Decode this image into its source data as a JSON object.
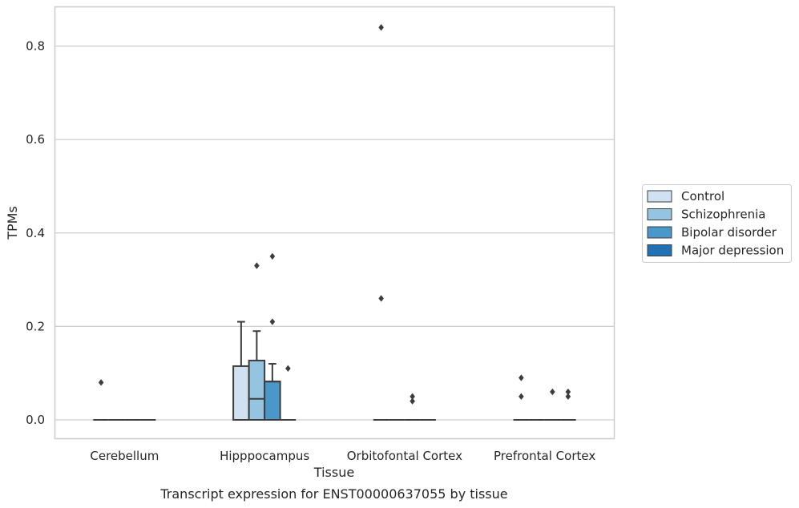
{
  "chart_data": {
    "type": "boxplot",
    "title": "Transcript expression for ENST00000637055 by tissue",
    "xlabel": "Tissue",
    "ylabel": "TPMs",
    "ylim": [
      -0.04,
      0.885
    ],
    "yticks": [
      0.0,
      0.2,
      0.4,
      0.6,
      0.8
    ],
    "ytick_labels": [
      "0.0",
      "0.2",
      "0.4",
      "0.6",
      "0.8"
    ],
    "grid": "horizontal",
    "legend_position": "right",
    "categories": [
      "Cerebellum",
      "Hipppocampus",
      "Orbitofontal Cortex",
      "Prefrontal Cortex"
    ],
    "series": [
      {
        "name": "Control",
        "color": "#d0e1f2",
        "boxes": [
          {
            "q1": 0,
            "median": 0,
            "q3": 0,
            "whislo": 0,
            "whishi": 0,
            "fliers": [
              0.08
            ]
          },
          {
            "q1": 0,
            "median": 0,
            "q3": 0.115,
            "whislo": 0,
            "whishi": 0.21,
            "fliers": []
          },
          {
            "q1": 0,
            "median": 0,
            "q3": 0,
            "whislo": 0,
            "whishi": 0,
            "fliers": [
              0.84,
              0.26
            ]
          },
          {
            "q1": 0,
            "median": 0,
            "q3": 0,
            "whislo": 0,
            "whishi": 0,
            "fliers": [
              0.09,
              0.05
            ]
          }
        ]
      },
      {
        "name": "Schizophrenia",
        "color": "#94c4df",
        "boxes": [
          {
            "q1": 0,
            "median": 0,
            "q3": 0,
            "whislo": 0,
            "whishi": 0,
            "fliers": []
          },
          {
            "q1": 0,
            "median": 0.045,
            "q3": 0.127,
            "whislo": 0,
            "whishi": 0.19,
            "fliers": [
              0.33
            ]
          },
          {
            "q1": 0,
            "median": 0,
            "q3": 0,
            "whislo": 0,
            "whishi": 0,
            "fliers": []
          },
          {
            "q1": 0,
            "median": 0,
            "q3": 0,
            "whislo": 0,
            "whishi": 0,
            "fliers": []
          }
        ]
      },
      {
        "name": "Bipolar disorder",
        "color": "#4a98c9",
        "boxes": [
          {
            "q1": 0,
            "median": 0,
            "q3": 0,
            "whislo": 0,
            "whishi": 0,
            "fliers": []
          },
          {
            "q1": 0,
            "median": 0.082,
            "q3": 0.082,
            "whislo": 0,
            "whishi": 0.12,
            "fliers": [
              0.35,
              0.21
            ]
          },
          {
            "q1": 0,
            "median": 0,
            "q3": 0,
            "whislo": 0,
            "whishi": 0,
            "fliers": [
              0.05,
              0.04
            ]
          },
          {
            "q1": 0,
            "median": 0,
            "q3": 0,
            "whislo": 0,
            "whishi": 0,
            "fliers": [
              0.06
            ]
          }
        ]
      },
      {
        "name": "Major depression",
        "color": "#2171b5",
        "boxes": [
          {
            "q1": 0,
            "median": 0,
            "q3": 0,
            "whislo": 0,
            "whishi": 0,
            "fliers": []
          },
          {
            "q1": 0,
            "median": 0,
            "q3": 0,
            "whislo": 0,
            "whishi": 0,
            "fliers": [
              0.11
            ]
          },
          {
            "q1": 0,
            "median": 0,
            "q3": 0,
            "whislo": 0,
            "whishi": 0,
            "fliers": []
          },
          {
            "q1": 0,
            "median": 0,
            "q3": 0,
            "whislo": 0,
            "whishi": 0,
            "fliers": [
              0.06,
              0.05
            ]
          }
        ]
      }
    ]
  }
}
